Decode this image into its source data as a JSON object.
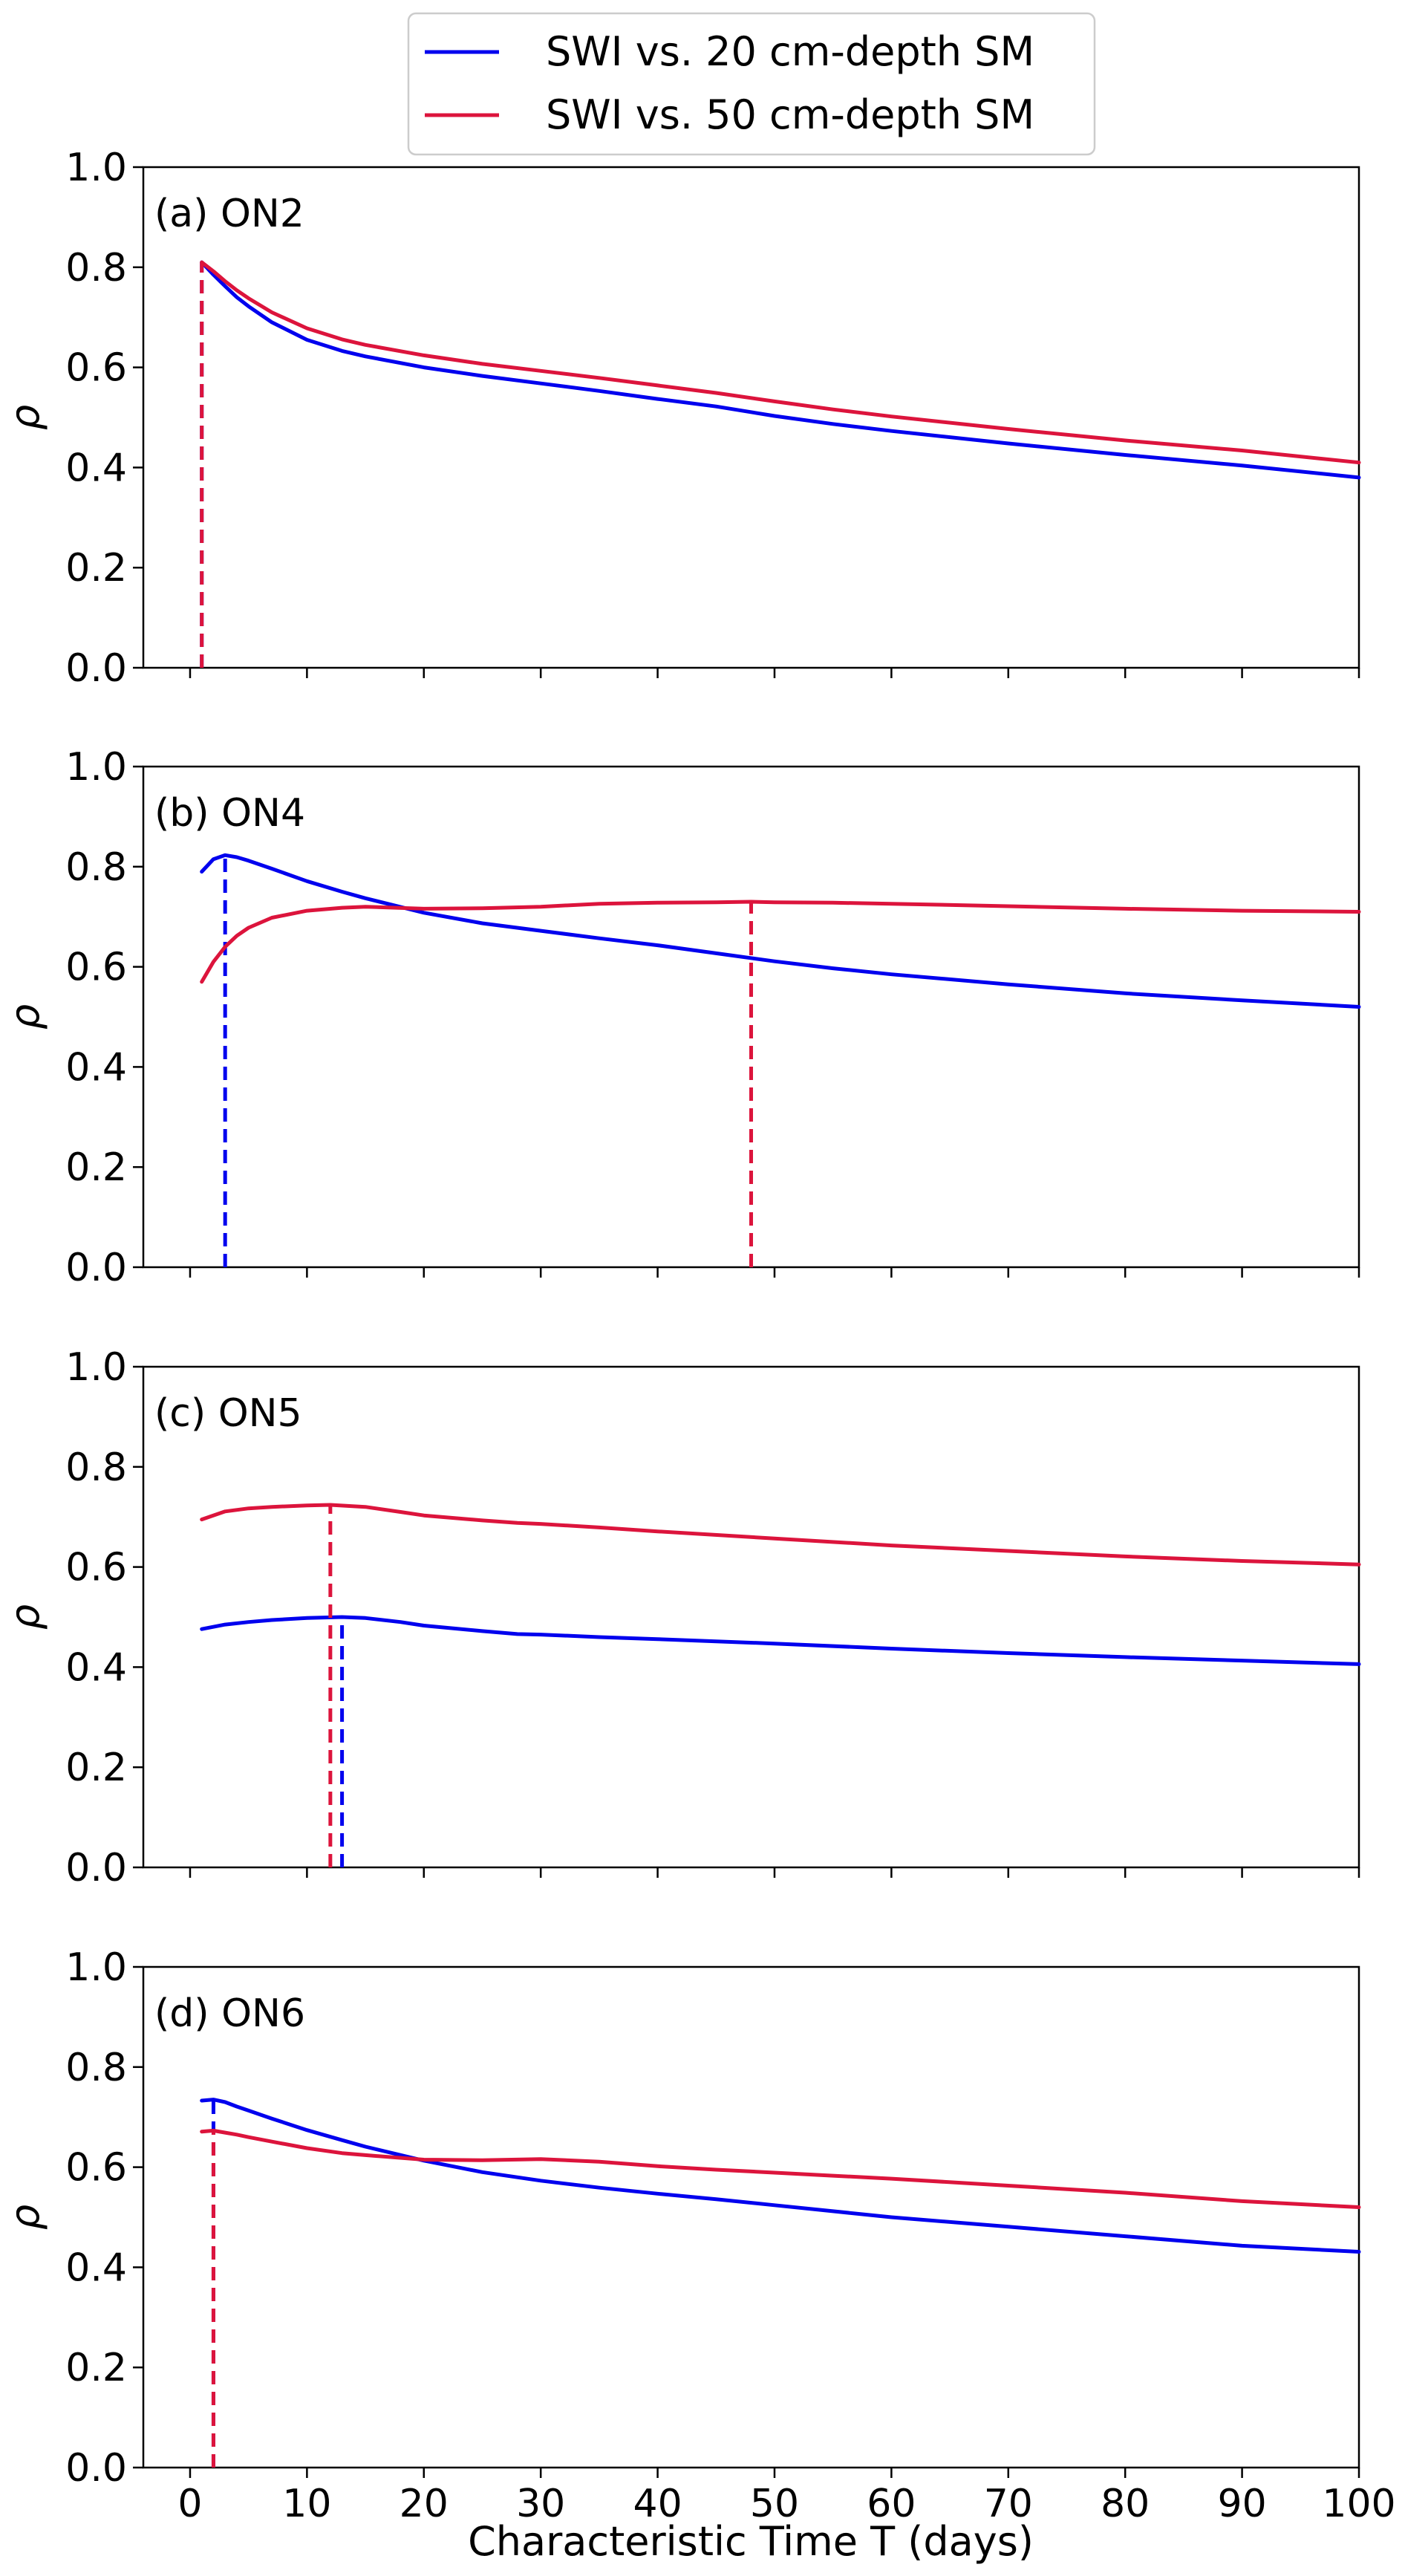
{
  "chart_data": {
    "type": "line",
    "xlabel": "Characteristic Time T (days)",
    "ylabel": "ρ",
    "xlim": [
      -4,
      100
    ],
    "ylim": [
      0,
      1
    ],
    "x_ticks": [
      0,
      10,
      20,
      30,
      40,
      50,
      60,
      70,
      80,
      90,
      100
    ],
    "y_ticks": [
      "0.0",
      "0.2",
      "0.4",
      "0.6",
      "0.8",
      "1.0"
    ],
    "legend": {
      "placement": "top-center",
      "entries": [
        {
          "label": "SWI vs. 20 cm-depth SM",
          "color": "#0000ee"
        },
        {
          "label": "SWI vs. 50 cm-depth SM",
          "color": "#dc143c"
        }
      ]
    },
    "panels": [
      {
        "label": "(a) ON2",
        "series": [
          {
            "name": "SWI vs. 20 cm-depth SM",
            "color": "#0000ee",
            "peak_T": 1,
            "x": [
              1,
              2,
              3,
              4,
              5,
              7,
              10,
              13,
              15,
              20,
              25,
              30,
              35,
              40,
              45,
              50,
              55,
              60,
              70,
              80,
              90,
              100
            ],
            "y": [
              0.81,
              0.785,
              0.762,
              0.74,
              0.722,
              0.69,
              0.655,
              0.633,
              0.622,
              0.6,
              0.583,
              0.568,
              0.553,
              0.537,
              0.522,
              0.503,
              0.487,
              0.473,
              0.448,
              0.425,
              0.404,
              0.38
            ]
          },
          {
            "name": "SWI vs. 50 cm-depth SM",
            "color": "#dc143c",
            "peak_T": 1,
            "x": [
              1,
              2,
              3,
              4,
              5,
              7,
              10,
              13,
              15,
              20,
              25,
              30,
              35,
              40,
              45,
              50,
              55,
              60,
              70,
              80,
              90,
              100
            ],
            "y": [
              0.81,
              0.792,
              0.772,
              0.754,
              0.738,
              0.71,
              0.678,
              0.656,
              0.645,
              0.624,
              0.607,
              0.593,
              0.579,
              0.564,
              0.549,
              0.532,
              0.516,
              0.502,
              0.477,
              0.454,
              0.434,
              0.41
            ]
          }
        ]
      },
      {
        "label": "(b) ON4",
        "series": [
          {
            "name": "SWI vs. 20 cm-depth SM",
            "color": "#0000ee",
            "peak_T": 3,
            "x": [
              1,
              2,
              3,
              4,
              5,
              7,
              10,
              13,
              15,
              20,
              25,
              30,
              35,
              40,
              45,
              50,
              55,
              60,
              70,
              80,
              90,
              100
            ],
            "y": [
              0.79,
              0.815,
              0.823,
              0.819,
              0.812,
              0.796,
              0.771,
              0.75,
              0.737,
              0.708,
              0.687,
              0.672,
              0.657,
              0.643,
              0.627,
              0.611,
              0.597,
              0.585,
              0.565,
              0.547,
              0.533,
              0.52
            ]
          },
          {
            "name": "SWI vs. 50 cm-depth SM",
            "color": "#dc143c",
            "peak_T": 48,
            "x": [
              1,
              2,
              3,
              4,
              5,
              7,
              10,
              13,
              15,
              20,
              25,
              30,
              35,
              40,
              45,
              48,
              50,
              55,
              60,
              70,
              80,
              90,
              100
            ],
            "y": [
              0.57,
              0.61,
              0.64,
              0.662,
              0.678,
              0.698,
              0.712,
              0.718,
              0.72,
              0.716,
              0.717,
              0.72,
              0.726,
              0.728,
              0.729,
              0.73,
              0.729,
              0.728,
              0.726,
              0.721,
              0.716,
              0.712,
              0.71
            ]
          }
        ]
      },
      {
        "label": "(c) ON5",
        "series": [
          {
            "name": "SWI vs. 20 cm-depth SM",
            "color": "#0000ee",
            "peak_T": 13,
            "x": [
              1,
              3,
              5,
              7,
              10,
              13,
              15,
              18,
              20,
              25,
              28,
              30,
              35,
              40,
              50,
              60,
              70,
              80,
              90,
              100
            ],
            "y": [
              0.476,
              0.485,
              0.49,
              0.494,
              0.498,
              0.5,
              0.498,
              0.49,
              0.483,
              0.472,
              0.466,
              0.465,
              0.46,
              0.456,
              0.447,
              0.437,
              0.428,
              0.42,
              0.413,
              0.406
            ]
          },
          {
            "name": "SWI vs. 50 cm-depth SM",
            "color": "#dc143c",
            "peak_T": 12,
            "x": [
              1,
              3,
              5,
              7,
              10,
              12,
              15,
              18,
              20,
              25,
              28,
              30,
              35,
              40,
              50,
              60,
              70,
              80,
              90,
              100
            ],
            "y": [
              0.695,
              0.711,
              0.717,
              0.72,
              0.723,
              0.724,
              0.72,
              0.71,
              0.703,
              0.693,
              0.688,
              0.686,
              0.679,
              0.671,
              0.657,
              0.643,
              0.632,
              0.621,
              0.612,
              0.605
            ]
          }
        ]
      },
      {
        "label": "(d) ON6",
        "series": [
          {
            "name": "SWI vs. 20 cm-depth SM",
            "color": "#0000ee",
            "peak_T": 2,
            "x": [
              1,
              2,
              3,
              4,
              5,
              7,
              10,
              13,
              15,
              20,
              25,
              30,
              35,
              40,
              45,
              50,
              55,
              60,
              70,
              80,
              90,
              100
            ],
            "y": [
              0.733,
              0.735,
              0.73,
              0.721,
              0.713,
              0.697,
              0.674,
              0.654,
              0.641,
              0.613,
              0.59,
              0.573,
              0.559,
              0.547,
              0.536,
              0.524,
              0.512,
              0.5,
              0.481,
              0.462,
              0.443,
              0.431
            ]
          },
          {
            "name": "SWI vs. 50 cm-depth SM",
            "color": "#dc143c",
            "peak_T": 2,
            "x": [
              1,
              2,
              3,
              4,
              5,
              7,
              10,
              13,
              15,
              20,
              25,
              30,
              35,
              40,
              45,
              50,
              55,
              60,
              70,
              80,
              90,
              100
            ],
            "y": [
              0.671,
              0.673,
              0.669,
              0.665,
              0.66,
              0.651,
              0.638,
              0.628,
              0.624,
              0.615,
              0.614,
              0.616,
              0.611,
              0.602,
              0.595,
              0.589,
              0.583,
              0.577,
              0.563,
              0.549,
              0.532,
              0.52
            ]
          }
        ]
      }
    ]
  }
}
